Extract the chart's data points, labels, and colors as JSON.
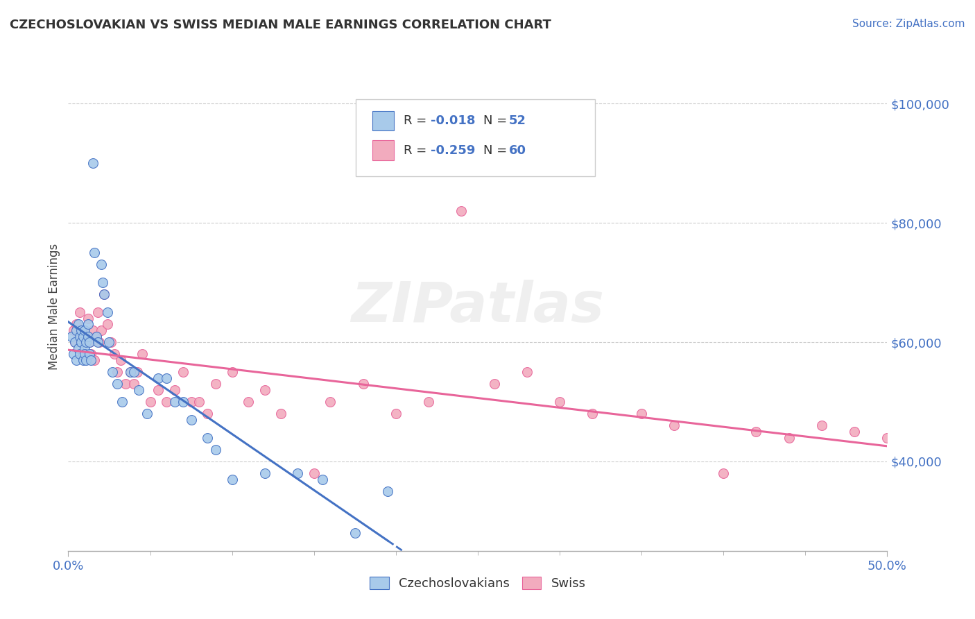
{
  "title": "CZECHOSLOVAKIAN VS SWISS MEDIAN MALE EARNINGS CORRELATION CHART",
  "source_text": "Source: ZipAtlas.com",
  "ylabel": "Median Male Earnings",
  "xlim": [
    0.0,
    0.5
  ],
  "ylim": [
    25000,
    107000
  ],
  "ytick_values": [
    40000,
    60000,
    80000,
    100000
  ],
  "ytick_labels": [
    "$40,000",
    "$60,000",
    "$80,000",
    "$100,000"
  ],
  "color_czech": "#A8CAEA",
  "color_swiss": "#F2ABBE",
  "color_line_czech": "#4472C4",
  "color_line_swiss": "#E8659A",
  "watermark": "ZIPatlas",
  "czech_x": [
    0.002,
    0.003,
    0.004,
    0.005,
    0.005,
    0.006,
    0.006,
    0.007,
    0.007,
    0.008,
    0.008,
    0.009,
    0.009,
    0.01,
    0.01,
    0.01,
    0.011,
    0.011,
    0.012,
    0.012,
    0.013,
    0.013,
    0.014,
    0.015,
    0.016,
    0.017,
    0.018,
    0.02,
    0.021,
    0.022,
    0.024,
    0.025,
    0.027,
    0.03,
    0.033,
    0.038,
    0.04,
    0.043,
    0.048,
    0.055,
    0.06,
    0.065,
    0.07,
    0.075,
    0.085,
    0.09,
    0.1,
    0.12,
    0.14,
    0.155,
    0.175,
    0.195
  ],
  "czech_y": [
    61000,
    58000,
    60000,
    62000,
    57000,
    59000,
    63000,
    61000,
    58000,
    60000,
    62000,
    57000,
    61000,
    59000,
    62000,
    58000,
    60000,
    57000,
    61000,
    63000,
    60000,
    58000,
    57000,
    90000,
    75000,
    61000,
    60000,
    73000,
    70000,
    68000,
    65000,
    60000,
    55000,
    53000,
    50000,
    55000,
    55000,
    52000,
    48000,
    54000,
    54000,
    50000,
    50000,
    47000,
    44000,
    42000,
    37000,
    38000,
    38000,
    37000,
    28000,
    35000
  ],
  "swiss_x": [
    0.003,
    0.004,
    0.005,
    0.006,
    0.007,
    0.008,
    0.009,
    0.01,
    0.011,
    0.012,
    0.013,
    0.014,
    0.015,
    0.016,
    0.017,
    0.018,
    0.019,
    0.02,
    0.022,
    0.024,
    0.026,
    0.028,
    0.03,
    0.032,
    0.035,
    0.038,
    0.04,
    0.042,
    0.045,
    0.05,
    0.055,
    0.06,
    0.065,
    0.07,
    0.075,
    0.08,
    0.085,
    0.09,
    0.1,
    0.11,
    0.12,
    0.13,
    0.15,
    0.16,
    0.18,
    0.2,
    0.22,
    0.24,
    0.26,
    0.28,
    0.3,
    0.32,
    0.35,
    0.37,
    0.4,
    0.42,
    0.44,
    0.46,
    0.48,
    0.5
  ],
  "swiss_y": [
    62000,
    60000,
    63000,
    61000,
    65000,
    60000,
    62000,
    58000,
    61000,
    64000,
    60000,
    58000,
    62000,
    57000,
    61000,
    65000,
    60000,
    62000,
    68000,
    63000,
    60000,
    58000,
    55000,
    57000,
    53000,
    55000,
    53000,
    55000,
    58000,
    50000,
    52000,
    50000,
    52000,
    55000,
    50000,
    50000,
    48000,
    53000,
    55000,
    50000,
    52000,
    48000,
    38000,
    50000,
    53000,
    48000,
    50000,
    82000,
    53000,
    55000,
    50000,
    48000,
    48000,
    46000,
    38000,
    45000,
    44000,
    46000,
    45000,
    44000
  ]
}
